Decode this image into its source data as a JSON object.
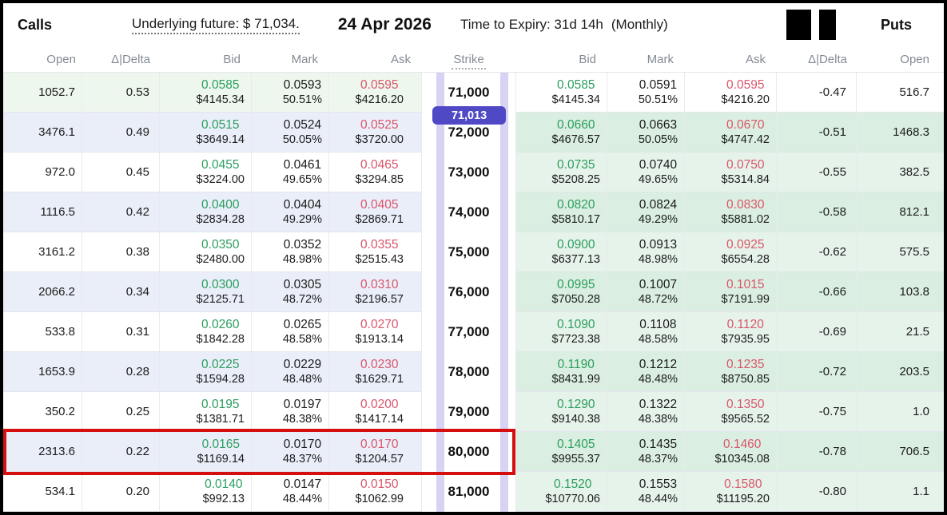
{
  "colors": {
    "bid-green": "#2b9e5e",
    "ask-red": "#d9566b",
    "row-shade": "#eaeef8",
    "call-itm": "#edf7ee",
    "put-itm-light": "#e6f3ea",
    "put-itm-dark": "#daeee1",
    "stripe-purple": "#d8d2f4",
    "pill-indigo": "#4f49c6",
    "highlight-red": "#d50f0f"
  },
  "header": {
    "calls_label": "Calls",
    "underlying": "Underlying future: $ 71,034.",
    "date": "24 Apr 2026",
    "expiry": "Time to Expiry: 31d 14h",
    "expiry_type": "(Monthly)",
    "puts_label": "Puts"
  },
  "columns": {
    "open": "Open",
    "delta": "Δ|Delta",
    "bid": "Bid",
    "mark": "Mark",
    "ask": "Ask",
    "strike": "Strike"
  },
  "underlying_price_marker": "71,013",
  "rows": [
    {
      "strike": "71,000",
      "call_itm": true,
      "put_itm": false,
      "highlighted": false,
      "call": {
        "open": "1052.7",
        "delta": "0.53",
        "bid": "0.0585",
        "bid_usd": "$4145.34",
        "mark": "0.0593",
        "mark_pct": "50.51%",
        "ask": "0.0595",
        "ask_usd": "$4216.20"
      },
      "put": {
        "bid": "0.0585",
        "bid_usd": "$4145.34",
        "mark": "0.0591",
        "mark_pct": "50.51%",
        "ask": "0.0595",
        "ask_usd": "$4216.20",
        "delta": "-0.47",
        "open": "516.7"
      }
    },
    {
      "strike": "72,000",
      "call_itm": false,
      "put_itm": true,
      "highlighted": false,
      "call": {
        "open": "3476.1",
        "delta": "0.49",
        "bid": "0.0515",
        "bid_usd": "$3649.14",
        "mark": "0.0524",
        "mark_pct": "50.05%",
        "ask": "0.0525",
        "ask_usd": "$3720.00"
      },
      "put": {
        "bid": "0.0660",
        "bid_usd": "$4676.57",
        "mark": "0.0663",
        "mark_pct": "50.05%",
        "ask": "0.0670",
        "ask_usd": "$4747.42",
        "delta": "-0.51",
        "open": "1468.3"
      }
    },
    {
      "strike": "73,000",
      "call_itm": false,
      "put_itm": true,
      "highlighted": false,
      "call": {
        "open": "972.0",
        "delta": "0.45",
        "bid": "0.0455",
        "bid_usd": "$3224.00",
        "mark": "0.0461",
        "mark_pct": "49.65%",
        "ask": "0.0465",
        "ask_usd": "$3294.85"
      },
      "put": {
        "bid": "0.0735",
        "bid_usd": "$5208.25",
        "mark": "0.0740",
        "mark_pct": "49.65%",
        "ask": "0.0750",
        "ask_usd": "$5314.84",
        "delta": "-0.55",
        "open": "382.5"
      }
    },
    {
      "strike": "74,000",
      "call_itm": false,
      "put_itm": true,
      "highlighted": false,
      "call": {
        "open": "1116.5",
        "delta": "0.42",
        "bid": "0.0400",
        "bid_usd": "$2834.28",
        "mark": "0.0404",
        "mark_pct": "49.29%",
        "ask": "0.0405",
        "ask_usd": "$2869.71"
      },
      "put": {
        "bid": "0.0820",
        "bid_usd": "$5810.17",
        "mark": "0.0824",
        "mark_pct": "49.29%",
        "ask": "0.0830",
        "ask_usd": "$5881.02",
        "delta": "-0.58",
        "open": "812.1"
      }
    },
    {
      "strike": "75,000",
      "call_itm": false,
      "put_itm": true,
      "highlighted": false,
      "call": {
        "open": "3161.2",
        "delta": "0.38",
        "bid": "0.0350",
        "bid_usd": "$2480.00",
        "mark": "0.0352",
        "mark_pct": "48.98%",
        "ask": "0.0355",
        "ask_usd": "$2515.43"
      },
      "put": {
        "bid": "0.0900",
        "bid_usd": "$6377.13",
        "mark": "0.0913",
        "mark_pct": "48.98%",
        "ask": "0.0925",
        "ask_usd": "$6554.28",
        "delta": "-0.62",
        "open": "575.5"
      }
    },
    {
      "strike": "76,000",
      "call_itm": false,
      "put_itm": true,
      "highlighted": false,
      "call": {
        "open": "2066.2",
        "delta": "0.34",
        "bid": "0.0300",
        "bid_usd": "$2125.71",
        "mark": "0.0305",
        "mark_pct": "48.72%",
        "ask": "0.0310",
        "ask_usd": "$2196.57"
      },
      "put": {
        "bid": "0.0995",
        "bid_usd": "$7050.28",
        "mark": "0.1007",
        "mark_pct": "48.72%",
        "ask": "0.1015",
        "ask_usd": "$7191.99",
        "delta": "-0.66",
        "open": "103.8"
      }
    },
    {
      "strike": "77,000",
      "call_itm": false,
      "put_itm": true,
      "highlighted": false,
      "call": {
        "open": "533.8",
        "delta": "0.31",
        "bid": "0.0260",
        "bid_usd": "$1842.28",
        "mark": "0.0265",
        "mark_pct": "48.58%",
        "ask": "0.0270",
        "ask_usd": "$1913.14"
      },
      "put": {
        "bid": "0.1090",
        "bid_usd": "$7723.38",
        "mark": "0.1108",
        "mark_pct": "48.58%",
        "ask": "0.1120",
        "ask_usd": "$7935.95",
        "delta": "-0.69",
        "open": "21.5"
      }
    },
    {
      "strike": "78,000",
      "call_itm": false,
      "put_itm": true,
      "highlighted": false,
      "call": {
        "open": "1653.9",
        "delta": "0.28",
        "bid": "0.0225",
        "bid_usd": "$1594.28",
        "mark": "0.0229",
        "mark_pct": "48.48%",
        "ask": "0.0230",
        "ask_usd": "$1629.71"
      },
      "put": {
        "bid": "0.1190",
        "bid_usd": "$8431.99",
        "mark": "0.1212",
        "mark_pct": "48.48%",
        "ask": "0.1235",
        "ask_usd": "$8750.85",
        "delta": "-0.72",
        "open": "203.5"
      }
    },
    {
      "strike": "79,000",
      "call_itm": false,
      "put_itm": true,
      "highlighted": false,
      "call": {
        "open": "350.2",
        "delta": "0.25",
        "bid": "0.0195",
        "bid_usd": "$1381.71",
        "mark": "0.0197",
        "mark_pct": "48.38%",
        "ask": "0.0200",
        "ask_usd": "$1417.14"
      },
      "put": {
        "bid": "0.1290",
        "bid_usd": "$9140.38",
        "mark": "0.1322",
        "mark_pct": "48.38%",
        "ask": "0.1350",
        "ask_usd": "$9565.52",
        "delta": "-0.75",
        "open": "1.0"
      }
    },
    {
      "strike": "80,000",
      "call_itm": false,
      "put_itm": true,
      "highlighted": true,
      "call": {
        "open": "2313.6",
        "delta": "0.22",
        "bid": "0.0165",
        "bid_usd": "$1169.14",
        "mark": "0.0170",
        "mark_pct": "48.37%",
        "ask": "0.0170",
        "ask_usd": "$1204.57"
      },
      "put": {
        "bid": "0.1405",
        "bid_usd": "$9955.37",
        "mark": "0.1435",
        "mark_pct": "48.37%",
        "ask": "0.1460",
        "ask_usd": "$10345.08",
        "delta": "-0.78",
        "open": "706.5"
      }
    },
    {
      "strike": "81,000",
      "call_itm": false,
      "put_itm": true,
      "highlighted": false,
      "call": {
        "open": "534.1",
        "delta": "0.20",
        "bid": "0.0140",
        "bid_usd": "$992.13",
        "mark": "0.0147",
        "mark_pct": "48.44%",
        "ask": "0.0150",
        "ask_usd": "$1062.99"
      },
      "put": {
        "bid": "0.1520",
        "bid_usd": "$10770.06",
        "mark": "0.1553",
        "mark_pct": "48.44%",
        "ask": "0.1580",
        "ask_usd": "$11195.20",
        "delta": "-0.80",
        "open": "1.1"
      }
    }
  ]
}
